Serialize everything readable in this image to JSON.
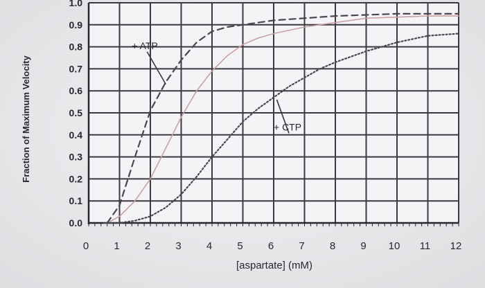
{
  "chart_data": {
    "type": "line",
    "xlabel": "[aspartate] (mM)",
    "ylabel": "Fraction of Maximum Velocity",
    "xlim": [
      0,
      12
    ],
    "ylim": [
      0,
      1.0
    ],
    "x_ticks": [
      "0",
      "1",
      "2",
      "3",
      "4",
      "5",
      "6",
      "7",
      "8",
      "9",
      "10",
      "11",
      "12"
    ],
    "y_ticks": [
      "0.0",
      "0.1",
      "0.2",
      "0.3",
      "0.4",
      "0.5",
      "0.6",
      "0.7",
      "0.8",
      "0.9",
      "1.0"
    ],
    "grid": true,
    "series": [
      {
        "style": "solid",
        "color": "#c9a0a4",
        "x": [
          0.6,
          1.0,
          1.5,
          2.0,
          2.5,
          3.0,
          3.5,
          4.0,
          4.5,
          5.0,
          5.5,
          6.0,
          7.0,
          8.0,
          9.0,
          10.0,
          11.0,
          12.0
        ],
        "y": [
          0.0,
          0.03,
          0.1,
          0.2,
          0.34,
          0.48,
          0.6,
          0.69,
          0.76,
          0.81,
          0.84,
          0.86,
          0.89,
          0.91,
          0.93,
          0.935,
          0.94,
          0.94
        ]
      },
      {
        "name": "+ATP",
        "style": "dashed",
        "color": "#4a4550",
        "x": [
          0.6,
          1.0,
          1.5,
          2.0,
          2.5,
          3.0,
          3.5,
          4.0,
          4.5,
          5.0,
          6.0,
          7.0,
          8.0,
          9.0,
          10.0,
          11.0,
          12.0
        ],
        "y": [
          0.0,
          0.08,
          0.3,
          0.51,
          0.64,
          0.74,
          0.82,
          0.87,
          0.89,
          0.9,
          0.92,
          0.93,
          0.94,
          0.945,
          0.95,
          0.95,
          0.95
        ]
      },
      {
        "name": "+CTP",
        "style": "dotted",
        "color": "#4a4550",
        "x": [
          0.5,
          1.0,
          1.5,
          2.0,
          2.5,
          3.0,
          3.5,
          4.0,
          4.5,
          5.0,
          5.5,
          6.0,
          6.5,
          7.0,
          7.5,
          8.0,
          9.0,
          10.0,
          11.0,
          12.0
        ],
        "y": [
          0.0,
          0.0,
          0.01,
          0.03,
          0.07,
          0.13,
          0.21,
          0.3,
          0.38,
          0.46,
          0.52,
          0.57,
          0.62,
          0.66,
          0.7,
          0.73,
          0.78,
          0.82,
          0.85,
          0.86
        ]
      }
    ],
    "annotations": [
      {
        "text": "+ ATP",
        "x": 1.4,
        "y": 0.79,
        "arrow_to": [
          2.5,
          0.63
        ]
      },
      {
        "text": "+ CTP",
        "x": 6.0,
        "y": 0.42,
        "arrow_to": [
          6.1,
          0.56
        ]
      }
    ]
  }
}
